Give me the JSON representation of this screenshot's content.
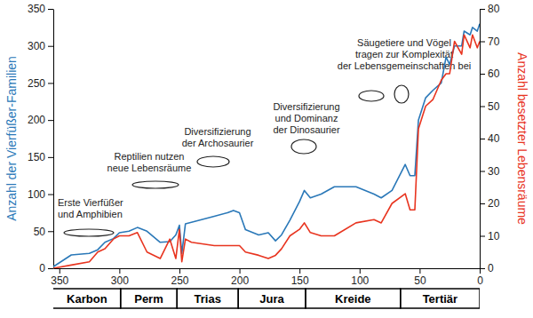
{
  "chart_data": {
    "type": "line",
    "xlim": [
      355,
      0
    ],
    "xticks": [
      350,
      300,
      250,
      200,
      150,
      100,
      50,
      0
    ],
    "ylim": [
      0,
      350
    ],
    "yticks": [
      0,
      50,
      100,
      150,
      200,
      250,
      300,
      350
    ],
    "y2lim": [
      0,
      80
    ],
    "y2ticks": [
      0,
      10,
      20,
      30,
      40,
      50,
      60,
      70,
      80
    ],
    "ylabel": "Anzahl der Vierfüßer-Familien",
    "y2label": "Anzahl besetzter Lebensräume",
    "x": [
      355,
      340,
      325,
      318,
      312,
      305,
      300,
      292,
      285,
      277,
      266,
      258,
      253,
      250,
      248,
      245,
      240,
      221,
      210,
      205,
      200,
      195,
      184,
      176,
      170,
      165,
      158,
      150,
      146,
      141,
      132,
      121,
      103,
      88,
      82,
      73,
      62,
      58,
      54,
      51,
      45,
      39,
      32,
      28,
      25,
      21,
      15,
      13,
      8,
      6,
      2,
      0
    ],
    "series": [
      {
        "name": "Anzahl der Vierfüßer-Familien",
        "color": "#2a78b8",
        "axis": "y",
        "values": [
          2,
          18,
          20,
          25,
          35,
          40,
          48,
          50,
          55,
          50,
          35,
          36,
          45,
          58,
          20,
          60,
          62,
          70,
          75,
          78,
          75,
          52,
          45,
          48,
          37,
          45,
          65,
          90,
          105,
          95,
          100,
          110,
          110,
          100,
          95,
          105,
          140,
          125,
          125,
          200,
          230,
          240,
          250,
          285,
          275,
          300,
          300,
          320,
          315,
          325,
          320,
          330
        ]
      },
      {
        "name": "Anzahl besetzter Lebensräume",
        "color": "#e8341f",
        "axis": "y2",
        "values": [
          0,
          1,
          2,
          5,
          6,
          9,
          10,
          10,
          11,
          5,
          3,
          9,
          3,
          12,
          2,
          9,
          8,
          7,
          7,
          7,
          7,
          5,
          4,
          3,
          4,
          6,
          10,
          12,
          14,
          11,
          10,
          10,
          14,
          15,
          14,
          20,
          23,
          18,
          18,
          43,
          50,
          52,
          58,
          60,
          60,
          70,
          66,
          72,
          68,
          72,
          68,
          70
        ]
      }
    ],
    "periods": [
      {
        "name": "Karbon",
        "start": 359,
        "end": 299
      },
      {
        "name": "Perm",
        "start": 299,
        "end": 252
      },
      {
        "name": "Trias",
        "start": 252,
        "end": 201
      },
      {
        "name": "Jura",
        "start": 201,
        "end": 145
      },
      {
        "name": "Kreide",
        "start": 145,
        "end": 66
      },
      {
        "name": "Tertiär",
        "start": 66,
        "end": 0
      }
    ],
    "annotations": [
      [
        "Erste Vierfüßer",
        "und Amphibien"
      ],
      [
        "Reptilien nutzen",
        "neue Lebensräume"
      ],
      [
        "Diversifizierung",
        "der Archosaurier"
      ],
      [
        "Diversifizierung",
        "und Dominanz",
        "der Dinosaurier"
      ],
      [
        "Säugetiere und Vögel",
        "tragen zur Komplexität",
        "der Lebensgemeinschaften bei"
      ]
    ]
  }
}
